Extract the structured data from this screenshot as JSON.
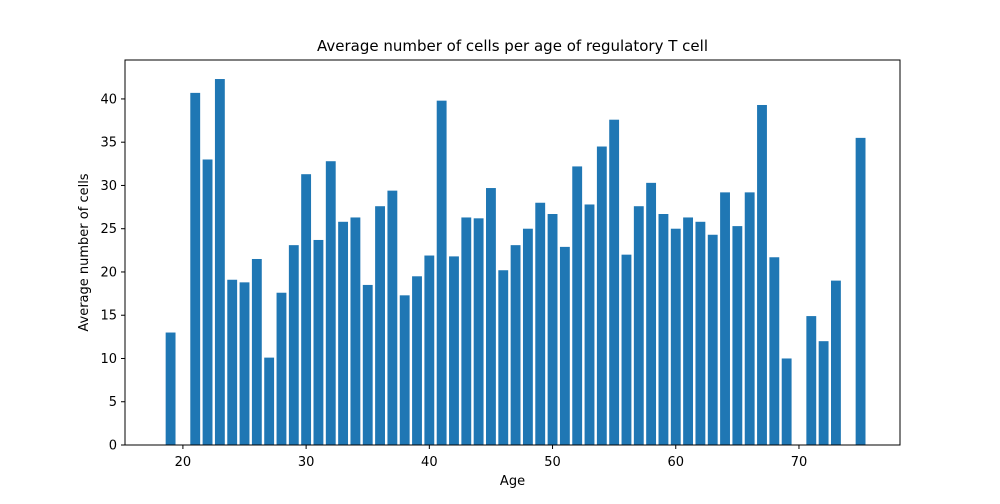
{
  "chart_data": {
    "type": "bar",
    "title": "Average number of cells per age of regulatory T cell",
    "xlabel": "Age",
    "ylabel": "Average number of cells",
    "xlim": [
      15.3,
      78.2
    ],
    "ylim": [
      0,
      44.5
    ],
    "xticks": [
      20,
      30,
      40,
      50,
      60,
      70
    ],
    "yticks": [
      0,
      5,
      10,
      15,
      20,
      25,
      30,
      35,
      40
    ],
    "grid": false,
    "bar_color": "#1f77b4",
    "x": [
      19,
      21,
      22,
      23,
      24,
      25,
      26,
      27,
      28,
      29,
      30,
      31,
      32,
      33,
      34,
      35,
      36,
      37,
      38,
      39,
      40,
      41,
      42,
      43,
      44,
      45,
      46,
      47,
      48,
      49,
      50,
      51,
      52,
      53,
      54,
      55,
      56,
      57,
      58,
      59,
      60,
      61,
      62,
      63,
      64,
      65,
      66,
      67,
      68,
      69,
      71,
      72,
      73,
      75
    ],
    "values": [
      13.0,
      40.7,
      33.0,
      42.3,
      19.1,
      18.8,
      21.5,
      10.1,
      17.6,
      23.1,
      31.3,
      23.7,
      32.8,
      25.8,
      26.3,
      18.5,
      27.6,
      29.4,
      17.3,
      19.5,
      21.9,
      39.8,
      21.8,
      26.3,
      26.2,
      29.7,
      20.2,
      23.1,
      25.0,
      28.0,
      26.7,
      22.9,
      32.2,
      27.8,
      34.5,
      37.6,
      22.0,
      27.6,
      30.3,
      26.7,
      25.0,
      26.3,
      25.8,
      24.3,
      29.2,
      25.3,
      29.2,
      39.3,
      21.7,
      10.0,
      14.9,
      12.0,
      19.0,
      35.5
    ]
  }
}
